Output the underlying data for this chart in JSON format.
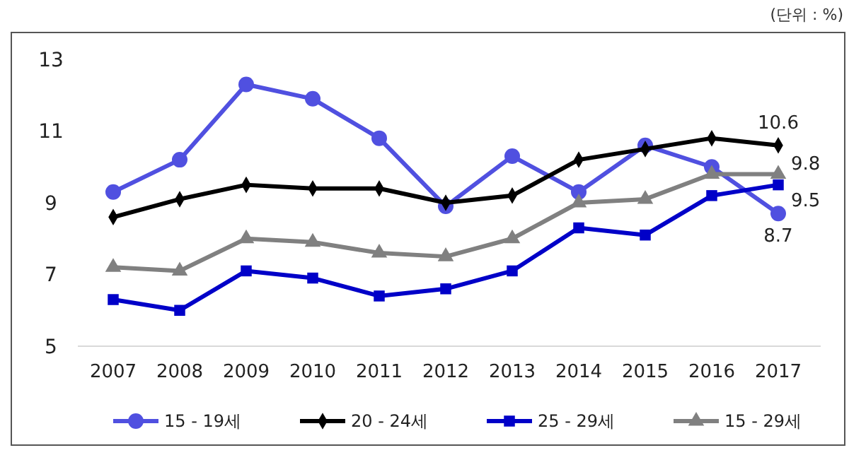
{
  "chart_data": {
    "type": "line",
    "annotations": [
      "(단위 : %)"
    ],
    "categories": [
      "2007",
      "2008",
      "2009",
      "2010",
      "2011",
      "2012",
      "2013",
      "2014",
      "2015",
      "2016",
      "2017"
    ],
    "series": [
      {
        "name": "15 - 19세",
        "color": "#5050e0",
        "marker": "circle",
        "values": [
          9.3,
          10.2,
          12.3,
          11.9,
          10.8,
          8.9,
          10.3,
          9.3,
          10.6,
          10.0,
          8.7
        ],
        "value_labels": [
          null,
          null,
          null,
          null,
          null,
          null,
          null,
          null,
          null,
          null,
          "8.7"
        ]
      },
      {
        "name": "20 - 24세",
        "color": "#000000",
        "marker": "diamond",
        "values": [
          8.6,
          9.1,
          9.5,
          9.4,
          9.4,
          9.0,
          9.2,
          10.2,
          10.5,
          10.8,
          10.6
        ],
        "value_labels": [
          null,
          null,
          null,
          null,
          null,
          null,
          null,
          null,
          null,
          null,
          "10.6"
        ]
      },
      {
        "name": "25 - 29세",
        "color": "#0000c8",
        "marker": "square",
        "values": [
          6.3,
          6.0,
          7.1,
          6.9,
          6.4,
          6.6,
          7.1,
          8.3,
          8.1,
          9.2,
          9.5
        ],
        "value_labels": [
          null,
          null,
          null,
          null,
          null,
          null,
          null,
          null,
          null,
          null,
          "9.5"
        ]
      },
      {
        "name": "15 - 29세",
        "color": "#808080",
        "marker": "triangle",
        "values": [
          7.2,
          7.1,
          8.0,
          7.9,
          7.6,
          7.5,
          8.0,
          9.0,
          9.1,
          9.8,
          9.8
        ],
        "value_labels": [
          null,
          null,
          null,
          null,
          null,
          null,
          null,
          null,
          null,
          null,
          "9.8"
        ]
      }
    ],
    "ylim": [
      5,
      13
    ],
    "yticks": [
      5,
      7,
      9,
      11,
      13
    ],
    "grid": false,
    "legend": "bottom",
    "line_style": "solid"
  }
}
